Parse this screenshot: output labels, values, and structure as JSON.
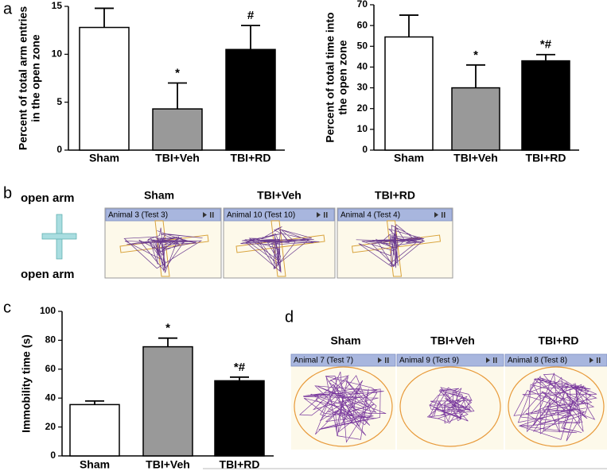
{
  "panel_labels": [
    "a",
    "b",
    "c",
    "d"
  ],
  "chart_data": [
    {
      "type": "bar",
      "ylabel": [
        "Percent of total arm entries",
        "in the open zone"
      ],
      "categories": [
        "Sham",
        "TBI+Veh",
        "TBI+RD"
      ],
      "values": [
        12.8,
        4.3,
        10.5
      ],
      "errors": [
        2.0,
        2.7,
        2.5
      ],
      "colors": [
        "#ffffff",
        "#999999",
        "#000000"
      ],
      "annotations": [
        null,
        "*",
        "#"
      ],
      "ylim": [
        0,
        15
      ],
      "yticks": [
        0,
        5,
        10,
        15
      ]
    },
    {
      "type": "bar",
      "ylabel": [
        "Percent of total time into",
        "the open zone"
      ],
      "categories": [
        "Sham",
        "TBI+Veh",
        "TBI+RD"
      ],
      "values": [
        54.5,
        30,
        43
      ],
      "errors": [
        10.5,
        11,
        3
      ],
      "colors": [
        "#ffffff",
        "#999999",
        "#000000"
      ],
      "annotations": [
        null,
        "*",
        "*#"
      ],
      "ylim": [
        0,
        70
      ],
      "yticks": [
        0,
        10,
        20,
        30,
        40,
        50,
        60,
        70
      ]
    },
    {
      "type": "bar",
      "ylabel": [
        "Immobility time (s)"
      ],
      "categories": [
        "Sham",
        "TBI+Veh",
        "TBI+RD"
      ],
      "values": [
        35.5,
        75.5,
        52
      ],
      "errors": [
        2.5,
        6,
        2.5
      ],
      "colors": [
        "#ffffff",
        "#999999",
        "#000000"
      ],
      "annotations": [
        null,
        "*",
        "*#"
      ],
      "ylim": [
        0,
        100
      ],
      "yticks": [
        0,
        20,
        40,
        60,
        80,
        100
      ]
    }
  ],
  "maze": {
    "arm_labels": [
      "open arm",
      "open arm"
    ],
    "groups": [
      "Sham",
      "TBI+Veh",
      "TBI+RD"
    ],
    "tracks": [
      "Animal 3 (Test 3)",
      "Animal 10 (Test 10)",
      "Animal 4 (Test 4)"
    ]
  },
  "swim": {
    "groups": [
      "Sham",
      "TBI+Veh",
      "TBI+RD"
    ],
    "tracks": [
      "Animal 7 (Test 7)",
      "Animal 9 (Test 9)",
      "Animal 8 (Test 8)"
    ]
  }
}
